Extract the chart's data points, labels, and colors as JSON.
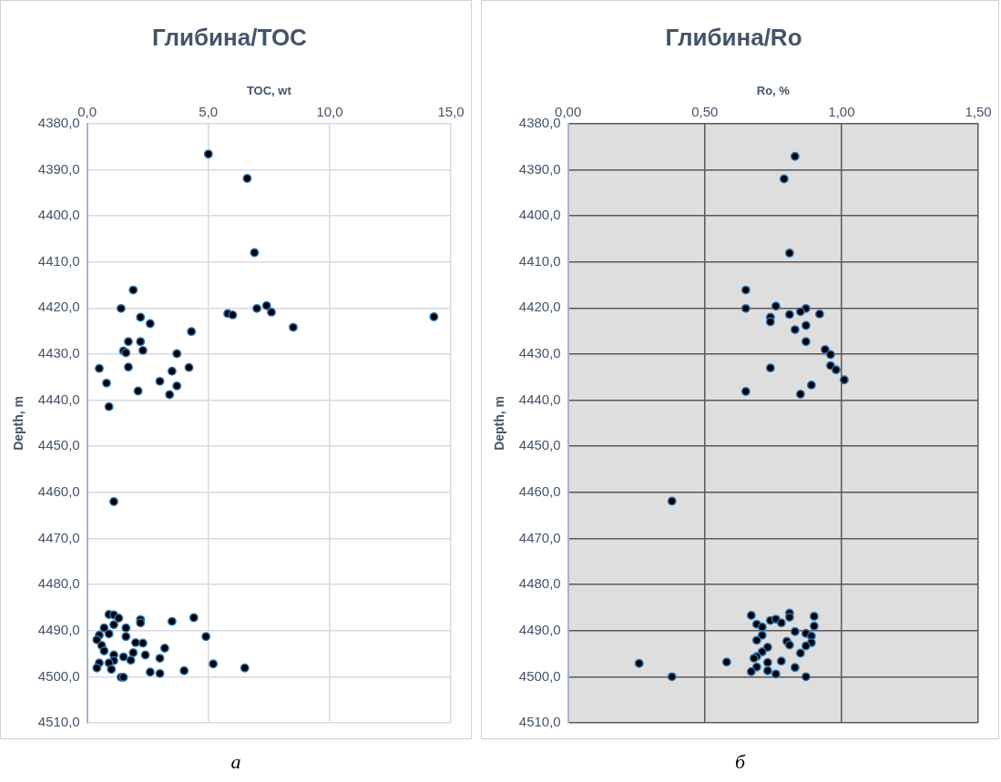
{
  "chart_data": [
    {
      "type": "scatter",
      "title": "Глибина/TOC",
      "xlabel": "TOC, wt",
      "ylabel": "Depth, m",
      "annotations": [
        "а"
      ],
      "marker": "circle",
      "grid": true,
      "legend": false,
      "xlim": [
        0,
        15
      ],
      "xticks": [
        {
          "value": 0,
          "label": "0,0"
        },
        {
          "value": 5,
          "label": "5,0"
        },
        {
          "value": 10,
          "label": "10,0"
        },
        {
          "value": 15,
          "label": "15,0"
        }
      ],
      "ylim": [
        4510,
        4380
      ],
      "yticks": [
        {
          "value": 4380,
          "label": "4380,0"
        },
        {
          "value": 4390,
          "label": "4390,0"
        },
        {
          "value": 4400,
          "label": "4400,0"
        },
        {
          "value": 4410,
          "label": "4410,0"
        },
        {
          "value": 4420,
          "label": "4420,0"
        },
        {
          "value": 4430,
          "label": "4430,0"
        },
        {
          "value": 4440,
          "label": "4440,0"
        },
        {
          "value": 4450,
          "label": "4450,0"
        },
        {
          "value": 4460,
          "label": "4460,0"
        },
        {
          "value": 4470,
          "label": "4470,0"
        },
        {
          "value": 4480,
          "label": "4480,0"
        },
        {
          "value": 4490,
          "label": "4490,0"
        },
        {
          "value": 4500,
          "label": "4500,0"
        },
        {
          "value": 4510,
          "label": "4510,0"
        }
      ],
      "series": [
        {
          "color": "#000000",
          "x": [
            5.0,
            6.6,
            6.9,
            1.9,
            1.4,
            2.2,
            2.6,
            4.3,
            5.8,
            6.0,
            7.0,
            7.4,
            7.6,
            8.5,
            14.3,
            1.7,
            2.2,
            1.5,
            1.6,
            2.3,
            3.7,
            1.7,
            0.5,
            3.5,
            4.2,
            3.0,
            0.8,
            3.7,
            2.1,
            3.4,
            0.9,
            1.1,
            0.9,
            1.1,
            1.3,
            2.2,
            2.2,
            3.5,
            4.4,
            0.7,
            1.1,
            1.6,
            0.9,
            0.5,
            1.6,
            4.9,
            0.4,
            2.0,
            2.3,
            0.6,
            3.2,
            0.7,
            1.9,
            2.4,
            1.1,
            1.5,
            1.8,
            3.0,
            1.1,
            0.5,
            0.9,
            5.2,
            6.5,
            0.4,
            1.0,
            2.6,
            3.0,
            4.0,
            1.4,
            1.5
          ],
          "values": [
            4386.6,
            4391.9,
            4408.0,
            4416.1,
            4420.1,
            4422.0,
            4423.4,
            4425.1,
            4421.2,
            4421.5,
            4420.1,
            4419.5,
            4420.9,
            4424.2,
            4421.9,
            4427.3,
            4427.3,
            4429.3,
            4429.7,
            4429.2,
            4429.9,
            4432.8,
            4433.1,
            4433.7,
            4432.9,
            4435.9,
            4436.3,
            4436.9,
            4438.0,
            4438.8,
            4441.4,
            4462.0,
            4486.5,
            4486.6,
            4487.3,
            4487.6,
            4488.3,
            4488.0,
            4487.2,
            4489.4,
            4488.7,
            4489.4,
            4490.7,
            4491.0,
            4491.3,
            4491.3,
            4492.0,
            4492.6,
            4492.7,
            4493.2,
            4493.8,
            4494.4,
            4494.8,
            4495.3,
            4495.3,
            4495.7,
            4496.4,
            4496.0,
            4496.5,
            4497.0,
            4497.0,
            4497.2,
            4498.1,
            4498.1,
            4498.4,
            4499.0,
            4499.3,
            4498.7,
            4500.1,
            4500.1
          ]
        }
      ]
    },
    {
      "type": "scatter",
      "title": "Глибина/Ro",
      "xlabel": "Ro, %",
      "ylabel": "Depth, m",
      "annotations": [
        "б"
      ],
      "marker": "circle",
      "grid": true,
      "legend": false,
      "xlim": [
        0,
        1.5
      ],
      "xticks": [
        {
          "value": 0,
          "label": "0,00"
        },
        {
          "value": 0.5,
          "label": "0,50"
        },
        {
          "value": 1,
          "label": "1,00"
        },
        {
          "value": 1.5,
          "label": "1,50"
        }
      ],
      "ylim": [
        4510,
        4380
      ],
      "yticks": [
        {
          "value": 4380,
          "label": "4380,0"
        },
        {
          "value": 4390,
          "label": "4390,0"
        },
        {
          "value": 4400,
          "label": "4400,0"
        },
        {
          "value": 4410,
          "label": "4410,0"
        },
        {
          "value": 4420,
          "label": "4420,0"
        },
        {
          "value": 4430,
          "label": "4430,0"
        },
        {
          "value": 4440,
          "label": "4440,0"
        },
        {
          "value": 4450,
          "label": "4450,0"
        },
        {
          "value": 4460,
          "label": "4460,0"
        },
        {
          "value": 4470,
          "label": "4470,0"
        },
        {
          "value": 4480,
          "label": "4480,0"
        },
        {
          "value": 4490,
          "label": "4490,0"
        },
        {
          "value": 4500,
          "label": "4500,0"
        },
        {
          "value": 4510,
          "label": "4510,0"
        }
      ],
      "series": [
        {
          "color": "#000000",
          "x": [
            0.83,
            0.79,
            0.81,
            0.65,
            0.65,
            0.76,
            0.87,
            0.85,
            0.81,
            0.92,
            0.74,
            0.74,
            0.83,
            0.87,
            0.87,
            0.94,
            0.96,
            0.96,
            0.98,
            0.74,
            1.01,
            0.89,
            0.65,
            0.85,
            0.38,
            0.26,
            0.38,
            0.58,
            0.67,
            0.81,
            0.81,
            0.9,
            0.74,
            0.76,
            0.78,
            0.69,
            0.71,
            0.9,
            0.83,
            0.87,
            0.89,
            0.71,
            0.69,
            0.8,
            0.81,
            0.89,
            0.87,
            0.73,
            0.71,
            0.85,
            0.69,
            0.68,
            0.78,
            0.73,
            0.69,
            0.83,
            0.67,
            0.73,
            0.76,
            0.87
          ],
          "values": [
            4387.1,
            4392.0,
            4408.1,
            4416.1,
            4420.1,
            4419.6,
            4420.1,
            4420.8,
            4421.4,
            4421.3,
            4422.0,
            4423.0,
            4424.7,
            4423.8,
            4427.3,
            4429.0,
            4430.1,
            4432.5,
            4433.4,
            4433.0,
            4435.6,
            4436.7,
            4438.1,
            4438.7,
            4461.9,
            4497.1,
            4500.0,
            4496.8,
            4486.7,
            4486.2,
            4487.1,
            4486.9,
            4487.8,
            4487.5,
            4488.3,
            4488.6,
            4489.2,
            4489.0,
            4490.2,
            4490.6,
            4491.2,
            4491.0,
            4492.1,
            4492.3,
            4493.1,
            4492.6,
            4493.3,
            4493.6,
            4494.6,
            4494.9,
            4495.6,
            4496.0,
            4496.6,
            4496.9,
            4497.9,
            4498.0,
            4498.9,
            4498.7,
            4499.4,
            4500.0
          ]
        }
      ]
    }
  ]
}
